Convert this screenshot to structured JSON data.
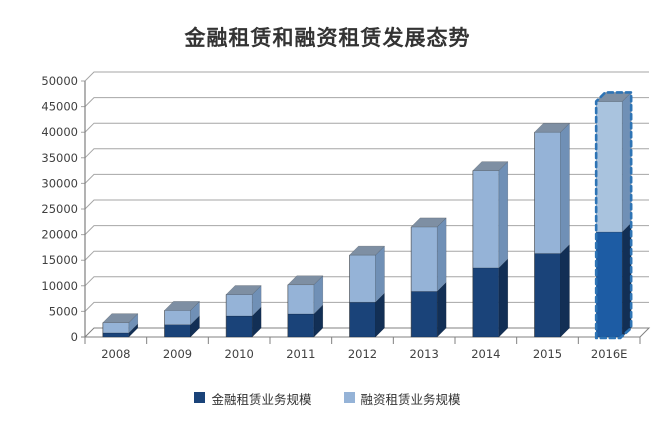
{
  "title": "金融租赁和融资租赁发展态势",
  "chart_data": {
    "type": "bar",
    "stacked": true,
    "effect": "3d",
    "title": "金融租赁和融资租赁发展态势",
    "categories": [
      "2008",
      "2009",
      "2010",
      "2011",
      "2012",
      "2013",
      "2014",
      "2015",
      "2016E"
    ],
    "series": [
      {
        "name": "金融租赁业务规模",
        "color": "#1A4379",
        "values": [
          800,
          2400,
          4100,
          4500,
          6800,
          8900,
          13500,
          16300,
          20500
        ]
      },
      {
        "name": "融资租赁业务规模",
        "color": "#95B3D7",
        "values": [
          2000,
          2800,
          4200,
          5700,
          9200,
          12600,
          19000,
          23700,
          25500
        ]
      }
    ],
    "totals": [
      2800,
      5200,
      8300,
      10200,
      16000,
      21500,
      32500,
      40000,
      46000
    ],
    "ylim": [
      0,
      50000
    ],
    "ytick_step": 5000,
    "yticks": [
      0,
      5000,
      10000,
      15000,
      20000,
      25000,
      30000,
      35000,
      40000,
      45000,
      50000
    ],
    "grid": true,
    "legend_position": "bottom",
    "estimate": {
      "category": "2016E",
      "style": "dashed-outline",
      "border_color": "#2E74B5",
      "segment_colors": [
        "#1D5CA4",
        "#A9C3DE"
      ]
    }
  },
  "colors": {
    "background": "#FFFFFF",
    "gridline": "#A6A6A6",
    "axis": "#808080",
    "tick_label": "#404040",
    "title_text": "#333333",
    "series1_fill": "#1A4379",
    "series1_side": "#122F55",
    "series2_fill": "#95B3D7",
    "series2_side": "#7090B6",
    "bar_top_cap": "#7E8FA3",
    "estimate_border": "#2E74B5"
  }
}
